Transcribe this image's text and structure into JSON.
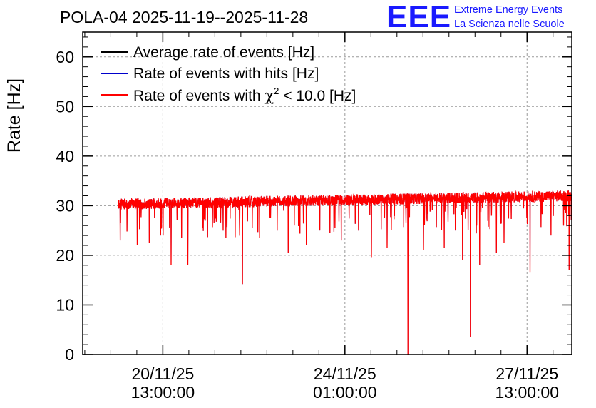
{
  "chart_data": {
    "type": "line",
    "title": "POLA-04 2025-11-19--2025-11-28",
    "ylabel": "Rate [Hz]",
    "xlabel": "",
    "ylim": [
      0,
      65
    ],
    "grid": true,
    "legend_position": "top-left",
    "y_ticks": [
      0,
      10,
      20,
      30,
      40,
      50,
      60
    ],
    "y_tick_labels": [
      "0",
      "10",
      "20",
      "30",
      "40",
      "50",
      "60"
    ],
    "x_range_days": [
      0,
      9.4
    ],
    "x_ticks": [
      {
        "t": 1.54,
        "date": "20/11/25",
        "time": "13:00:00"
      },
      {
        "t": 5.04,
        "date": "24/11/25",
        "time": "01:00:00"
      },
      {
        "t": 8.54,
        "date": "27/11/25",
        "time": "13:00:00"
      }
    ],
    "data_start_day": 0.68,
    "data_end_day": 9.4,
    "baseline_start": 30.3,
    "baseline_end": 32.0,
    "noise_amplitude": 1.1,
    "dips": [
      {
        "t": 0.72,
        "value": 23.0
      },
      {
        "t": 0.85,
        "value": 24.8
      },
      {
        "t": 1.05,
        "value": 22.0
      },
      {
        "t": 1.28,
        "value": 22.5
      },
      {
        "t": 1.5,
        "value": 24.0
      },
      {
        "t": 1.7,
        "value": 18.0
      },
      {
        "t": 1.9,
        "value": 23.5
      },
      {
        "t": 2.02,
        "value": 18.0
      },
      {
        "t": 2.3,
        "value": 25.5
      },
      {
        "t": 2.7,
        "value": 25.0
      },
      {
        "t": 3.07,
        "value": 14.2
      },
      {
        "t": 3.4,
        "value": 23.5
      },
      {
        "t": 3.95,
        "value": 20.5
      },
      {
        "t": 4.3,
        "value": 22.0
      },
      {
        "t": 4.75,
        "value": 24.5
      },
      {
        "t": 4.97,
        "value": 23.0
      },
      {
        "t": 5.3,
        "value": 25.0
      },
      {
        "t": 5.55,
        "value": 19.5
      },
      {
        "t": 5.85,
        "value": 21.5
      },
      {
        "t": 6.25,
        "value": 0.0
      },
      {
        "t": 6.55,
        "value": 21.0
      },
      {
        "t": 6.95,
        "value": 21.5
      },
      {
        "t": 7.3,
        "value": 19.0
      },
      {
        "t": 7.45,
        "value": 3.5
      },
      {
        "t": 7.63,
        "value": 18.0
      },
      {
        "t": 7.95,
        "value": 20.5
      },
      {
        "t": 8.1,
        "value": 22.5
      },
      {
        "t": 8.6,
        "value": 16.5
      },
      {
        "t": 9.0,
        "value": 24.0
      },
      {
        "t": 9.35,
        "value": 17.0
      }
    ],
    "tail_levels": [
      27.2,
      28.0,
      29.0,
      30.0,
      31.0
    ],
    "series": [
      {
        "name": "Average rate of events [Hz]",
        "color": "#000000"
      },
      {
        "name": "Rate of events with hits [Hz]",
        "color": "#0000cc"
      },
      {
        "name": "Rate of events with χ² < 10.0 [Hz]",
        "color": "#ff0000"
      }
    ]
  },
  "legend": {
    "entries": [
      {
        "text": "Average rate of events [Hz]"
      },
      {
        "text": "Rate of events with hits [Hz]"
      },
      {
        "prefix": "Rate of events with ",
        "chi": "χ",
        "sup": "2",
        "suffix": " < 10.0 [Hz]"
      }
    ]
  },
  "logo": {
    "mark": "EEE",
    "line1": "Extreme Energy Events",
    "line2": "La Scienza nelle Scuole",
    "color": "#1a1aff"
  }
}
